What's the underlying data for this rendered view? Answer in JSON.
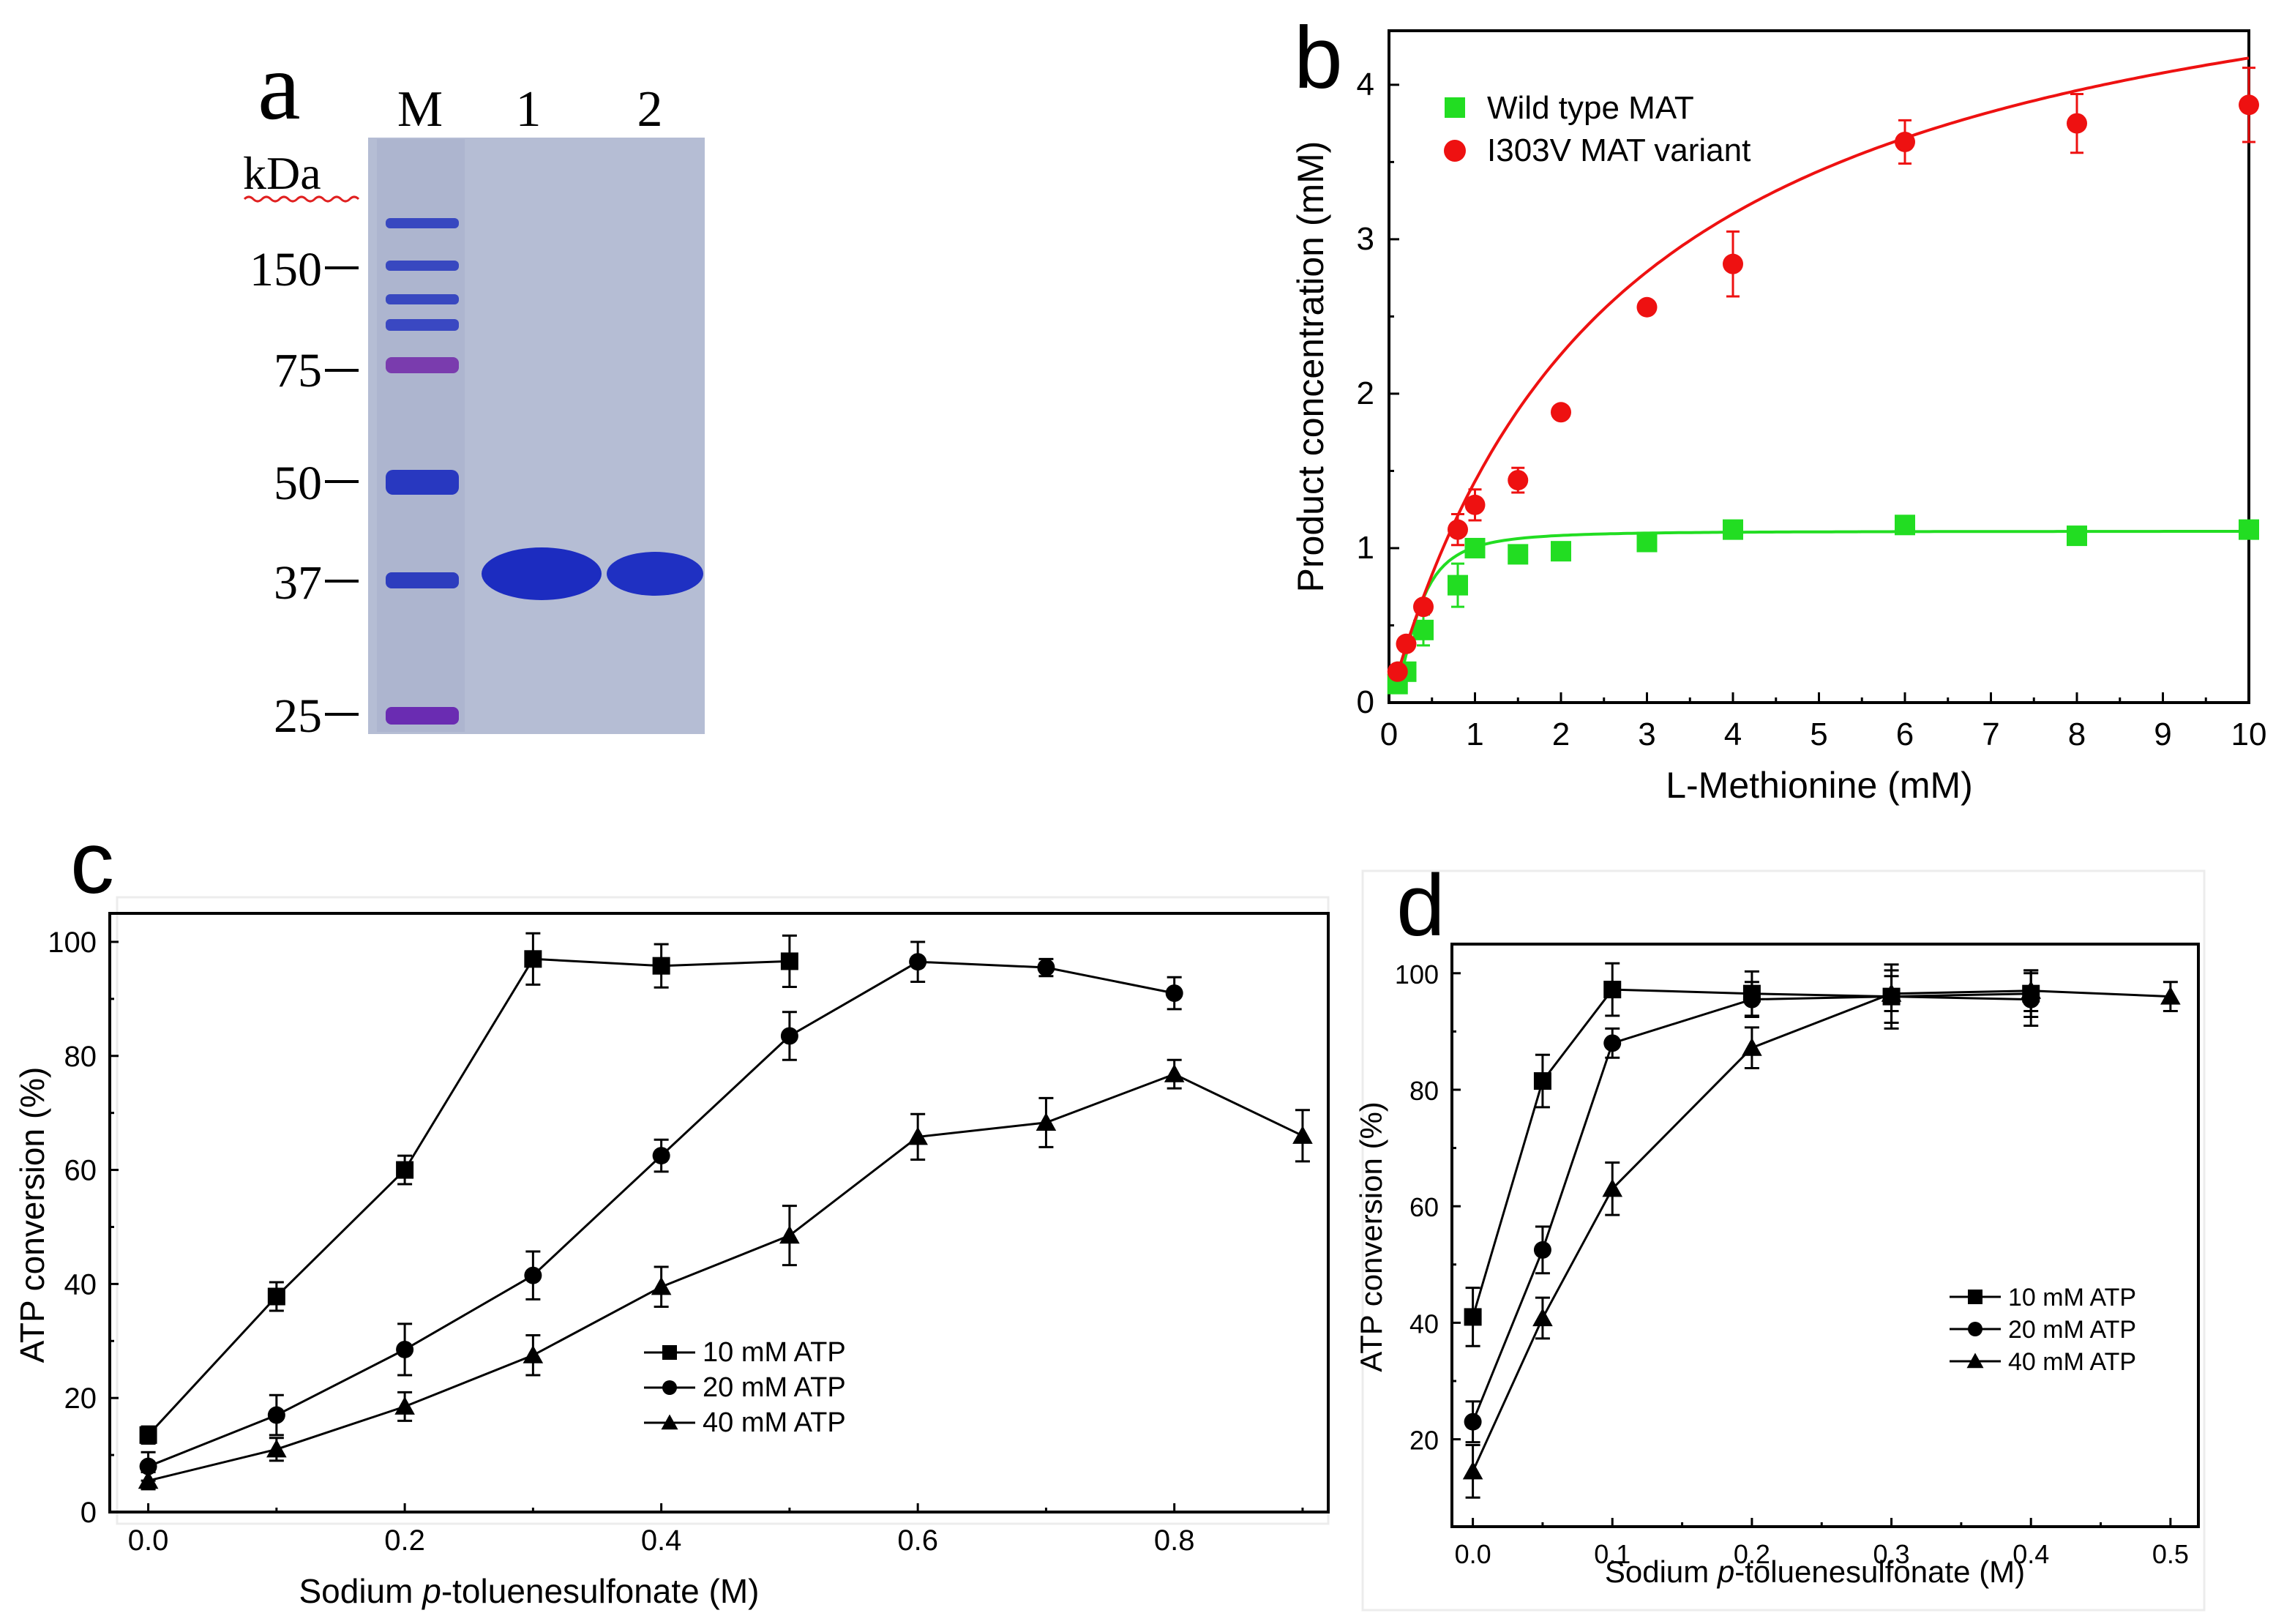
{
  "panel_labels": {
    "a": "a",
    "b": "b",
    "c": "c",
    "d": "d"
  },
  "gel": {
    "lane_headers": [
      "M",
      "1",
      "2"
    ],
    "unit": "kDa",
    "markers": [
      "150",
      "75",
      "50",
      "37",
      "25"
    ],
    "colors": {
      "background": "#b8c0d6",
      "band": "#2a3cc0",
      "dark_band": "#1e2fb8",
      "purple_band": "#8a3ca8"
    }
  },
  "chart_data": [
    {
      "id": "b",
      "type": "scatter",
      "title": "",
      "xlabel": "L-Methionine (mM)",
      "ylabel": "Product concentration (mM)",
      "xlim": [
        0,
        10
      ],
      "ylim": [
        0,
        4.35
      ],
      "xticks": [
        "0",
        "1",
        "2",
        "3",
        "4",
        "5",
        "6",
        "7",
        "8",
        "9",
        "10"
      ],
      "yticks": [
        "0",
        "1",
        "2",
        "3",
        "4"
      ],
      "legend_position": "top-left",
      "series": [
        {
          "name": "Wild type MAT",
          "marker": "square",
          "color": "#22dd22",
          "x": [
            0.1,
            0.2,
            0.4,
            0.8,
            1,
            1.5,
            2,
            3,
            4,
            6,
            8,
            10
          ],
          "y": [
            0.12,
            0.2,
            0.47,
            0.76,
            1.0,
            0.96,
            0.98,
            1.04,
            1.12,
            1.15,
            1.08,
            1.12
          ],
          "err": [
            0.04,
            0.05,
            0.1,
            0.14,
            0.05,
            0.05,
            0.04,
            0.04,
            0.04,
            0.04,
            0.05,
            0.03
          ],
          "fit": {
            "Vmax": 1.11,
            "K": 0.32,
            "n": 2.0
          }
        },
        {
          "name": "I303V MAT variant",
          "marker": "circle",
          "color": "#ee1111",
          "x": [
            0.1,
            0.2,
            0.4,
            0.8,
            1,
            1.5,
            2,
            3,
            4,
            6,
            8,
            10
          ],
          "y": [
            0.2,
            0.38,
            0.62,
            1.12,
            1.28,
            1.44,
            1.88,
            2.56,
            2.84,
            3.63,
            3.75,
            3.87
          ],
          "err": [
            0.03,
            0.04,
            0.04,
            0.1,
            0.1,
            0.08,
            0.04,
            0.04,
            0.21,
            0.14,
            0.19,
            0.24
          ],
          "fit": {
            "Vmax": 5.3,
            "K": 2.7,
            "n": 1.0
          }
        }
      ]
    },
    {
      "id": "c",
      "type": "line",
      "title": "",
      "xlabel_parts": [
        "Sodium ",
        "p",
        "-toluenesulfonate (M)"
      ],
      "ylabel": "ATP conversion (%)",
      "xlim": [
        -0.03,
        0.92
      ],
      "ylim": [
        0,
        105
      ],
      "xticks": [
        "0.0",
        "0.2",
        "0.4",
        "0.6",
        "0.8"
      ],
      "yticks": [
        "0",
        "20",
        "40",
        "60",
        "80",
        "100"
      ],
      "legend_position": "bottom-right",
      "series": [
        {
          "name": "10 mM ATP",
          "marker": "square",
          "x": [
            0,
            0.1,
            0.2,
            0.3,
            0.4,
            0.5
          ],
          "y": [
            13.5,
            37.8,
            60,
            97,
            95.8,
            96.6
          ],
          "err": [
            1.5,
            2.5,
            2.5,
            4.5,
            3.8,
            4.5
          ]
        },
        {
          "name": "20 mM ATP",
          "marker": "circle",
          "x": [
            0,
            0.1,
            0.2,
            0.3,
            0.4,
            0.5,
            0.6,
            0.7,
            0.8
          ],
          "y": [
            8,
            17,
            28.5,
            41.5,
            62.5,
            83.5,
            96.5,
            95.5,
            91
          ],
          "err": [
            2.5,
            3.5,
            4.5,
            4.2,
            2.8,
            4.2,
            3.5,
            1.5,
            2.8
          ]
        },
        {
          "name": "40 mM ATP",
          "marker": "triangle",
          "x": [
            0,
            0.1,
            0.2,
            0.3,
            0.4,
            0.5,
            0.6,
            0.7,
            0.8,
            0.9
          ],
          "y": [
            5.5,
            11,
            18.5,
            27.5,
            39.5,
            48.5,
            65.8,
            68.3,
            76.8,
            66
          ],
          "err": [
            1.5,
            2,
            2.5,
            3.5,
            3.5,
            5.2,
            4,
            4.3,
            2.5,
            4.5
          ]
        }
      ]
    },
    {
      "id": "d",
      "type": "line",
      "title": "",
      "xlabel_parts": [
        "Sodium ",
        "p",
        "-toluenesulfonate (M)"
      ],
      "ylabel": "ATP conversion (%)",
      "xlim": [
        -0.015,
        0.52
      ],
      "ylim": [
        5,
        105
      ],
      "xticks": [
        "0.0",
        "0.1",
        "0.2",
        "0.3",
        "0.4",
        "0.5"
      ],
      "yticks": [
        "20",
        "40",
        "60",
        "80",
        "100"
      ],
      "legend_position": "right-middle",
      "series": [
        {
          "name": "10 mM ATP",
          "marker": "square",
          "x": [
            0,
            0.05,
            0.1,
            0.2,
            0.3,
            0.4
          ],
          "y": [
            41,
            81.5,
            97.2,
            96.5,
            96,
            96.5
          ],
          "err": [
            5,
            4.5,
            4.5,
            3.8,
            5.5,
            4
          ]
        },
        {
          "name": "20 mM ATP",
          "marker": "circle",
          "x": [
            0,
            0.05,
            0.1,
            0.2,
            0.3,
            0.4
          ],
          "y": [
            23,
            52.5,
            88,
            95.5,
            96,
            95.5
          ],
          "err": [
            3.5,
            4,
            2.5,
            3,
            4.5,
            4.5
          ]
        },
        {
          "name": "40 mM ATP",
          "marker": "triangle",
          "x": [
            0,
            0.05,
            0.1,
            0.2,
            0.3,
            0.4,
            0.5
          ],
          "y": [
            14.5,
            40.8,
            63,
            87.2,
            96.5,
            97,
            96
          ],
          "err": [
            4.5,
            3.5,
            4.5,
            3.5,
            3,
            3.5,
            2.5
          ]
        }
      ]
    }
  ]
}
